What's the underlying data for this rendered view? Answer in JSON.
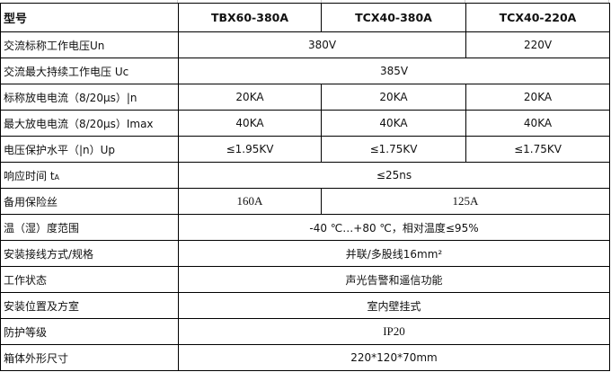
{
  "header": {
    "label": "型号",
    "models": [
      "TBX60-380A",
      "TCX40-380A",
      "TCX40-220A"
    ]
  },
  "rows": [
    {
      "label": "交流标称工作电压Un",
      "cells": [
        "380V",
        "220V"
      ]
    },
    {
      "label": "交流最大持续工作电压 Uc",
      "cells": [
        "385V"
      ]
    },
    {
      "label": "标称放电电流（8/20μs）|n",
      "cells": [
        "20KA",
        "20KA",
        "20KA"
      ]
    },
    {
      "label": "最大放电电流（8/20μs）Imax",
      "cells": [
        "40KA",
        "40KA",
        "40KA"
      ]
    },
    {
      "label": "电压保护水平（|n）Up",
      "cells": [
        "≤1.95KV",
        "≤1.75KV",
        "≤1.75KV"
      ]
    },
    {
      "label": "响应时间 t",
      "label_sub": "A",
      "cells": [
        "≤25ns"
      ]
    },
    {
      "label": "备用保险丝",
      "cells": [
        "160A",
        "125A"
      ]
    },
    {
      "label": "温（湿）度范围",
      "cells": [
        "-40 ℃…+80 ℃，相对温度≤95%"
      ]
    },
    {
      "label": "安装接线方式/规格",
      "cells": [
        "并联/多股线16mm²"
      ]
    },
    {
      "label": "工作状态",
      "cells": [
        "声光告警和遥信功能"
      ]
    },
    {
      "label": "安装位置及方室",
      "cells": [
        "室内壁挂式"
      ]
    },
    {
      "label": "防护等级",
      "cells": [
        "IP20"
      ]
    },
    {
      "label": "箱体外形尺寸",
      "cells": [
        "220*120*70mm"
      ]
    }
  ]
}
